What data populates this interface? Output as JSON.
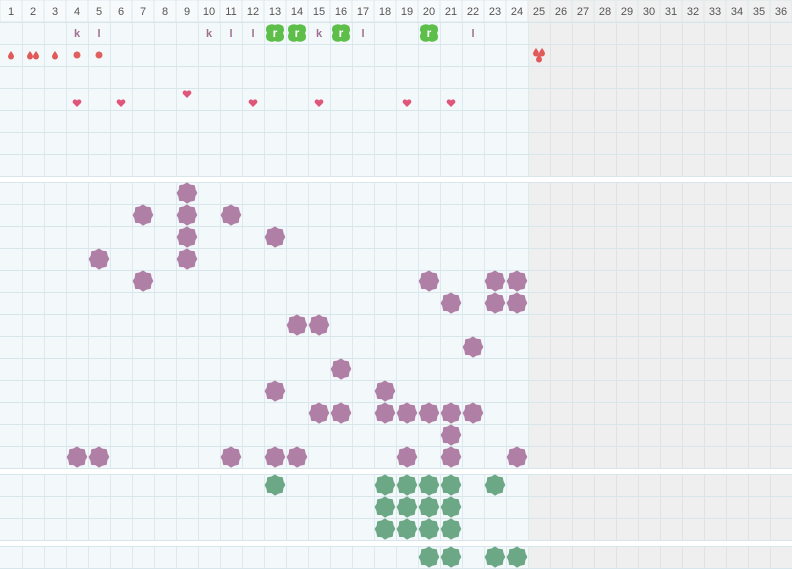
{
  "header": {
    "columns": [
      "1",
      "2",
      "3",
      "4",
      "5",
      "6",
      "7",
      "8",
      "9",
      "10",
      "11",
      "12",
      "13",
      "14",
      "15",
      "16",
      "17",
      "18",
      "19",
      "20",
      "21",
      "22",
      "23",
      "24",
      "25",
      "26",
      "27",
      "28",
      "29",
      "30",
      "31",
      "32",
      "33",
      "34",
      "35",
      "36"
    ]
  },
  "log_row": [
    null,
    null,
    null,
    "k",
    "l",
    null,
    null,
    null,
    null,
    "k",
    "l",
    "l",
    "r",
    "r",
    "k",
    "r",
    "l",
    null,
    null,
    "r",
    null,
    "l",
    null,
    null,
    null,
    null,
    null,
    null,
    null,
    null,
    null,
    null,
    null,
    null,
    null,
    null
  ]
}
